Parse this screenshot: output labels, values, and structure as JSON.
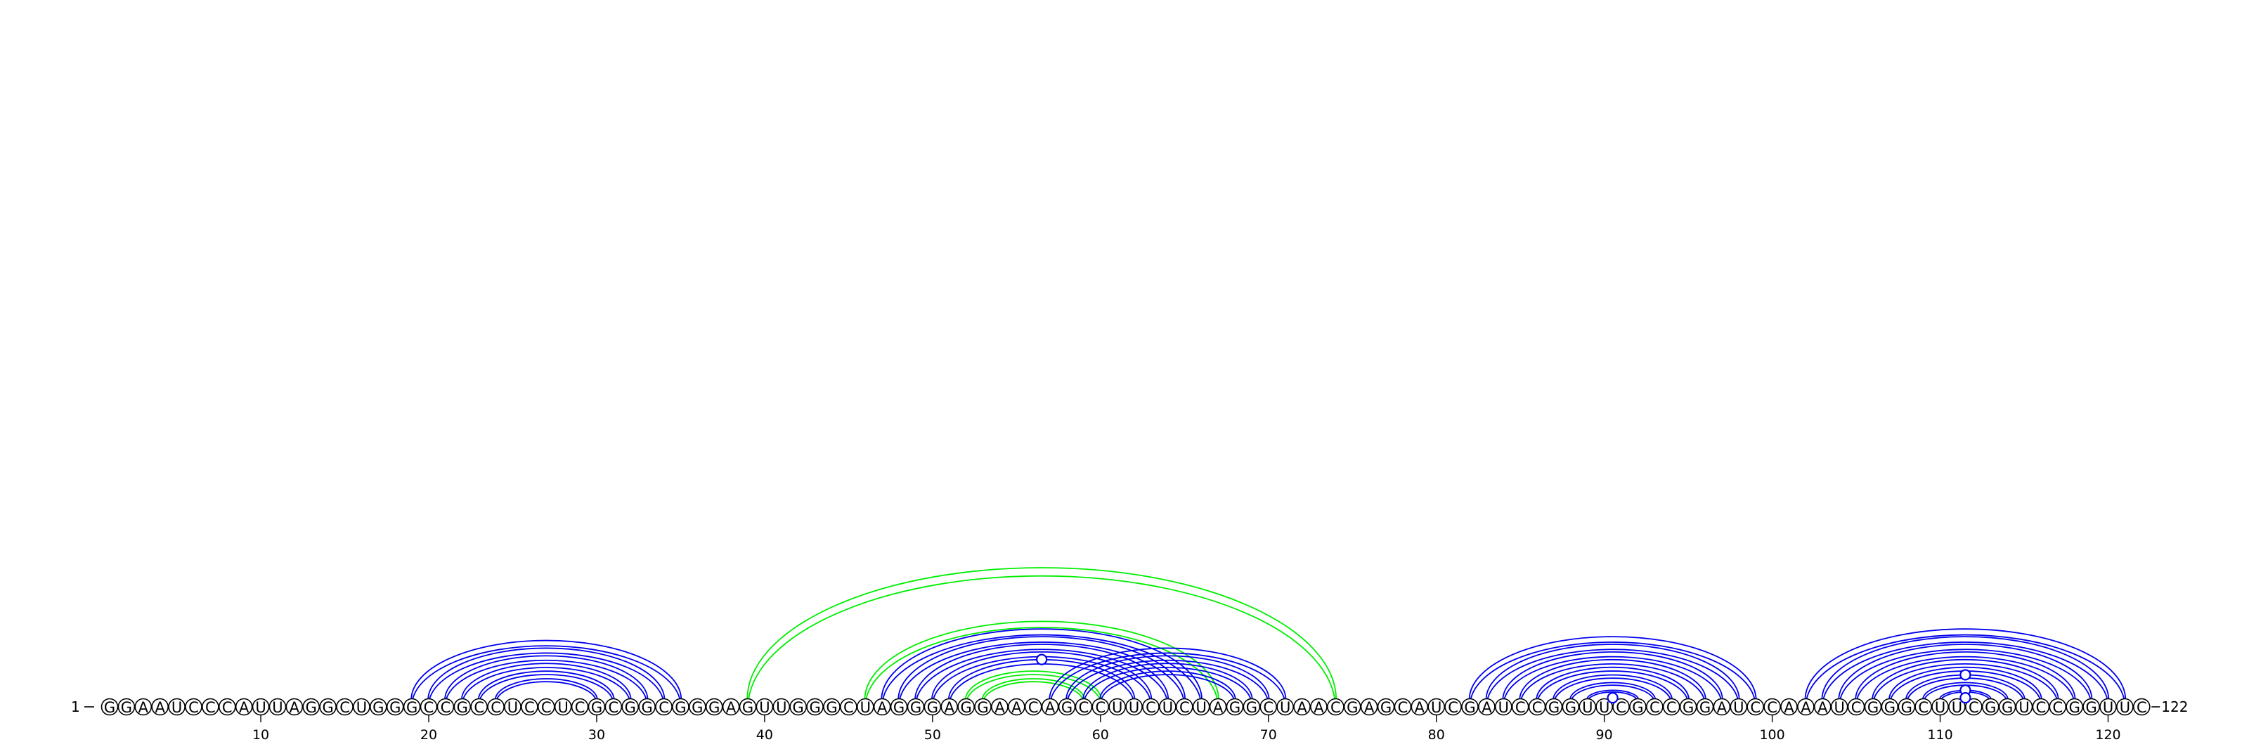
{
  "sequence": "GGAAUCCCAUUAGGCUGGGCCGCCUCCUCGCGGCGGGAGUUGGGCUAGGGAGGAACAGCCUUCUCUAGGCUAACGAGCAUCGAUCCGGUUCGCCGGAUCCAAAUCGGGCUUCGGUCCGGUUC",
  "start_label": "1",
  "end_label": "122",
  "tick_labels": [
    {
      "pos": 10,
      "label": "10"
    },
    {
      "pos": 20,
      "label": "20"
    },
    {
      "pos": 30,
      "label": "30"
    },
    {
      "pos": 40,
      "label": "40"
    },
    {
      "pos": 50,
      "label": "50"
    },
    {
      "pos": 60,
      "label": "60"
    },
    {
      "pos": 70,
      "label": "70"
    },
    {
      "pos": 80,
      "label": "80"
    },
    {
      "pos": 90,
      "label": "90"
    },
    {
      "pos": 100,
      "label": "100"
    },
    {
      "pos": 110,
      "label": "110"
    },
    {
      "pos": 120,
      "label": "120"
    }
  ],
  "colors": {
    "helix": "#0000ee",
    "pseudoknot": "#00ee00",
    "outline": "#000000",
    "background": "#ffffff"
  },
  "helix_groups": [
    {
      "color": "helix",
      "pairs": [
        [
          19,
          35
        ],
        [
          20,
          34
        ],
        [
          21,
          33
        ],
        [
          22,
          32
        ],
        [
          23,
          31
        ],
        [
          24,
          30
        ]
      ]
    },
    {
      "color": "pseudoknot",
      "pairs": [
        [
          39,
          74
        ]
      ]
    },
    {
      "color": "pseudoknot",
      "pairs": [
        [
          46,
          67
        ]
      ]
    },
    {
      "color": "helix",
      "pairs": [
        [
          47,
          66
        ],
        [
          48,
          65
        ],
        [
          49,
          64
        ],
        [
          50,
          63
        ],
        [
          51,
          62
        ]
      ]
    },
    {
      "color": "pseudoknot",
      "pairs": [
        [
          52,
          60
        ],
        [
          53,
          59
        ]
      ]
    },
    {
      "color": "helix",
      "pairs": [
        [
          57,
          71
        ],
        [
          58,
          70
        ],
        [
          59,
          69
        ],
        [
          60,
          68
        ]
      ]
    },
    {
      "color": "helix",
      "pairs": [
        [
          82,
          99
        ],
        [
          83,
          98
        ],
        [
          84,
          97
        ],
        [
          85,
          96
        ],
        [
          86,
          95
        ],
        [
          87,
          94
        ],
        [
          88,
          93
        ],
        [
          89,
          92
        ]
      ]
    },
    {
      "color": "helix",
      "pairs": [
        [
          102,
          121
        ],
        [
          103,
          120
        ],
        [
          104,
          119
        ],
        [
          105,
          118
        ],
        [
          106,
          117
        ],
        [
          107,
          116
        ],
        [
          108,
          115
        ],
        [
          109,
          114
        ],
        [
          110,
          113
        ]
      ]
    }
  ],
  "noncanonical_markers": [
    {
      "i": 51,
      "j": 62
    },
    {
      "i": 90,
      "j": 91
    },
    {
      "i": 108,
      "j": 115
    },
    {
      "i": 110,
      "j": 113
    },
    {
      "i": 111,
      "j": 112
    }
  ]
}
